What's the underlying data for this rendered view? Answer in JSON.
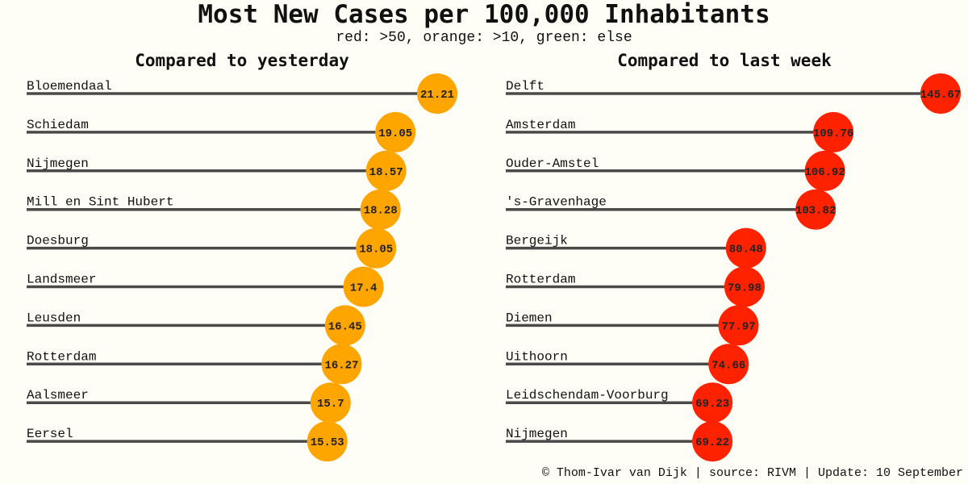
{
  "title": "Most New Cases per 100,000 Inhabitants",
  "subtitle": "red: >50, orange: >10, green: else",
  "footer": "© Thom-Ivar van Dijk | source: RIVM | Update: 10 September",
  "colors": {
    "red": "#ff2200",
    "orange": "#ffa500",
    "green": "#2ca02c",
    "line": "#4a4a4a",
    "background": "#fffef6"
  },
  "chart_data": [
    {
      "type": "lollipop",
      "title": "Compared to yesterday",
      "xlim": [
        0,
        22.5
      ],
      "categories": [
        "Bloemendaal",
        "Schiedam",
        "Nijmegen",
        "Mill en Sint Hubert",
        "Doesburg",
        "Landsmeer",
        "Leusden",
        "Rotterdam",
        "Aalsmeer",
        "Eersel"
      ],
      "values": [
        21.21,
        19.05,
        18.57,
        18.28,
        18.05,
        17.4,
        16.45,
        16.27,
        15.7,
        15.53
      ],
      "value_labels": [
        "21.21",
        "19.05",
        "18.57",
        "18.28",
        "18.05",
        "17.4",
        "16.45",
        "16.27",
        "15.7",
        "15.53"
      ]
    },
    {
      "type": "lollipop",
      "title": "Compared to last week",
      "xlim": [
        0,
        145.67
      ],
      "categories": [
        "Delft",
        "Amsterdam",
        "Ouder-Amstel",
        "'s-Gravenhage",
        "Bergeijk",
        "Rotterdam",
        "Diemen",
        "Uithoorn",
        "Leidschendam-Voorburg",
        "Nijmegen"
      ],
      "values": [
        145.67,
        109.76,
        106.92,
        103.82,
        80.48,
        79.98,
        77.97,
        74.66,
        69.23,
        69.22
      ],
      "value_labels": [
        "145.67",
        "109.76",
        "106.92",
        "103.82",
        "80.48",
        "79.98",
        "77.97",
        "74.66",
        "69.23",
        "69.22"
      ]
    }
  ]
}
